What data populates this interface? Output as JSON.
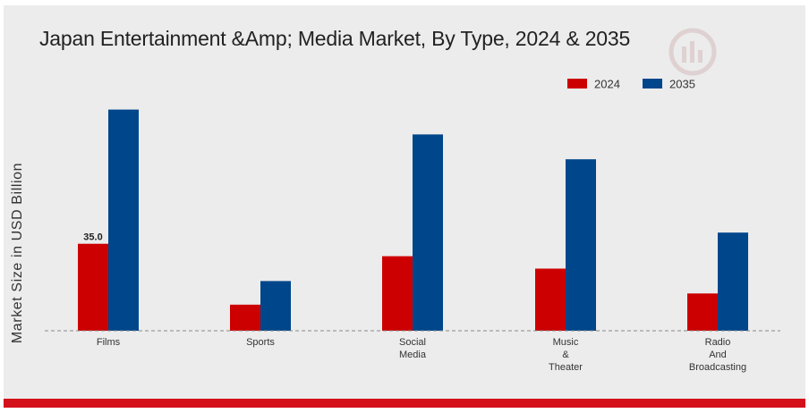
{
  "chart_data": {
    "type": "bar",
    "title": "Japan Entertainment &Amp; Media Market, By Type, 2024 & 2035",
    "xlabel": "",
    "ylabel": "Market Size in USD Billion",
    "categories": [
      [
        "Films"
      ],
      [
        "Sports"
      ],
      [
        "Social",
        "Media"
      ],
      [
        "Music",
        "&",
        "Theater"
      ],
      [
        "Radio",
        "And",
        "Broadcasting"
      ]
    ],
    "series": [
      {
        "name": "2024",
        "color": "#cc0000",
        "values": [
          35.0,
          10.5,
          30.0,
          25.0,
          15.0
        ]
      },
      {
        "name": "2035",
        "color": "#00468b",
        "values": [
          89.0,
          20.0,
          79.0,
          69.0,
          39.5
        ]
      }
    ],
    "data_labels": [
      {
        "series": 0,
        "index": 0,
        "text": "35.0"
      }
    ],
    "ylim": [
      0,
      100
    ],
    "legend_position": "top-right",
    "grid": false,
    "baseline": "dashed"
  }
}
